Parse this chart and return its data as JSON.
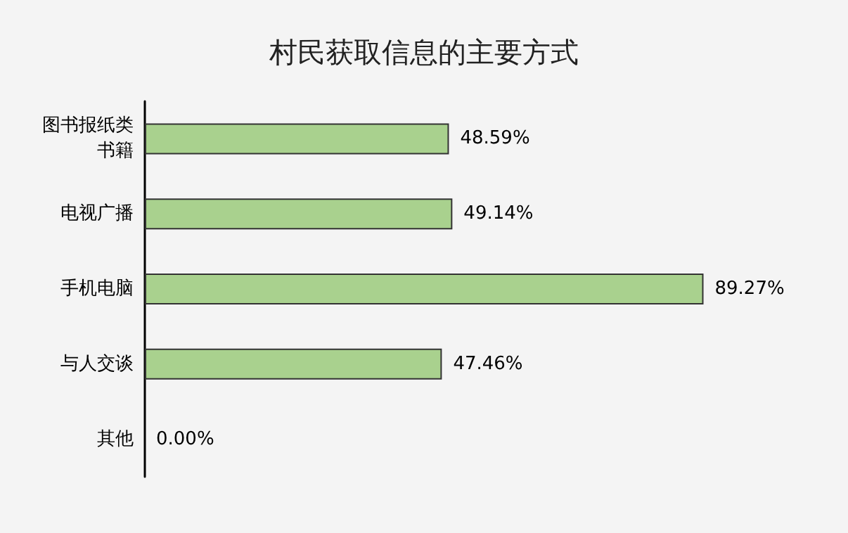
{
  "chart_data": {
    "type": "bar",
    "orientation": "horizontal",
    "title": "村民获取信息的主要方式",
    "categories": [
      "图书报纸类书籍",
      "电视广播",
      "手机电脑",
      "与人交谈",
      "其他"
    ],
    "values": [
      48.59,
      49.14,
      89.27,
      47.46,
      0.0
    ],
    "value_labels": [
      "48.59%",
      "49.14%",
      "89.27%",
      "47.46%",
      "0.00%"
    ],
    "color": "#a9d18e"
  }
}
